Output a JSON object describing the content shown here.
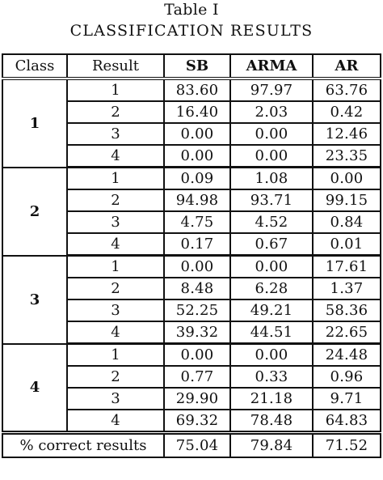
{
  "caption": {
    "line1": "Table I",
    "line2": "CLASSIFICATION RESULTS"
  },
  "table": {
    "headers": [
      "Class",
      "Result",
      "SB",
      "ARMA",
      "AR"
    ],
    "groups": [
      {
        "class": "1",
        "rows": [
          {
            "result": "1",
            "sb": "83.60",
            "arma": "97.97",
            "ar": "63.76"
          },
          {
            "result": "2",
            "sb": "16.40",
            "arma": "2.03",
            "ar": "0.42"
          },
          {
            "result": "3",
            "sb": "0.00",
            "arma": "0.00",
            "ar": "12.46"
          },
          {
            "result": "4",
            "sb": "0.00",
            "arma": "0.00",
            "ar": "23.35"
          }
        ]
      },
      {
        "class": "2",
        "rows": [
          {
            "result": "1",
            "sb": "0.09",
            "arma": "1.08",
            "ar": "0.00"
          },
          {
            "result": "2",
            "sb": "94.98",
            "arma": "93.71",
            "ar": "99.15"
          },
          {
            "result": "3",
            "sb": "4.75",
            "arma": "4.52",
            "ar": "0.84"
          },
          {
            "result": "4",
            "sb": "0.17",
            "arma": "0.67",
            "ar": "0.01"
          }
        ]
      },
      {
        "class": "3",
        "rows": [
          {
            "result": "1",
            "sb": "0.00",
            "arma": "0.00",
            "ar": "17.61"
          },
          {
            "result": "2",
            "sb": "8.48",
            "arma": "6.28",
            "ar": "1.37"
          },
          {
            "result": "3",
            "sb": "52.25",
            "arma": "49.21",
            "ar": "58.36"
          },
          {
            "result": "4",
            "sb": "39.32",
            "arma": "44.51",
            "ar": "22.65"
          }
        ]
      },
      {
        "class": "4",
        "rows": [
          {
            "result": "1",
            "sb": "0.00",
            "arma": "0.00",
            "ar": "24.48"
          },
          {
            "result": "2",
            "sb": "0.77",
            "arma": "0.33",
            "ar": "0.96"
          },
          {
            "result": "3",
            "sb": "29.90",
            "arma": "21.18",
            "ar": "9.71"
          },
          {
            "result": "4",
            "sb": "69.32",
            "arma": "78.48",
            "ar": "64.83"
          }
        ]
      }
    ],
    "total": {
      "label": "% correct results",
      "sb": "75.04",
      "arma": "79.84",
      "ar": "71.52"
    }
  }
}
